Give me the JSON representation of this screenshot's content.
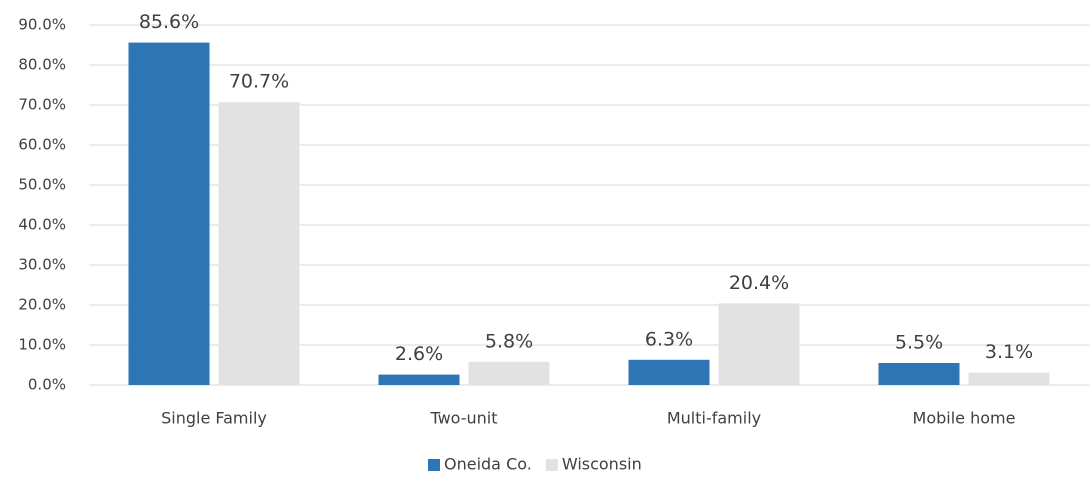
{
  "chart_data": {
    "type": "bar",
    "categories": [
      "Single Family",
      "Two-unit",
      "Multi-family",
      "Mobile home"
    ],
    "series": [
      {
        "name": "Oneida Co.",
        "color": "#2e75b6",
        "values": [
          85.6,
          2.6,
          6.3,
          5.5
        ],
        "value_labels": [
          "85.6%",
          "2.6%",
          "6.3%",
          "5.5%"
        ]
      },
      {
        "name": "Wisconsin",
        "color": "#e2e2e2",
        "values": [
          70.7,
          5.8,
          20.4,
          3.1
        ],
        "value_labels": [
          "70.7%",
          "5.8%",
          "20.4%",
          "3.1%"
        ]
      }
    ],
    "ylim": [
      0,
      90
    ],
    "yticks": [
      {
        "value": 0,
        "label": "0.0%"
      },
      {
        "value": 10,
        "label": "10.0%"
      },
      {
        "value": 20,
        "label": "20.0%"
      },
      {
        "value": 30,
        "label": "30.0%"
      },
      {
        "value": 40,
        "label": "40.0%"
      },
      {
        "value": 50,
        "label": "50.0%"
      },
      {
        "value": 60,
        "label": "60.0%"
      },
      {
        "value": 70,
        "label": "70.0%"
      },
      {
        "value": 80,
        "label": "80.0%"
      },
      {
        "value": 90,
        "label": "90.0%"
      }
    ],
    "grid": true,
    "legend": "bottom"
  }
}
